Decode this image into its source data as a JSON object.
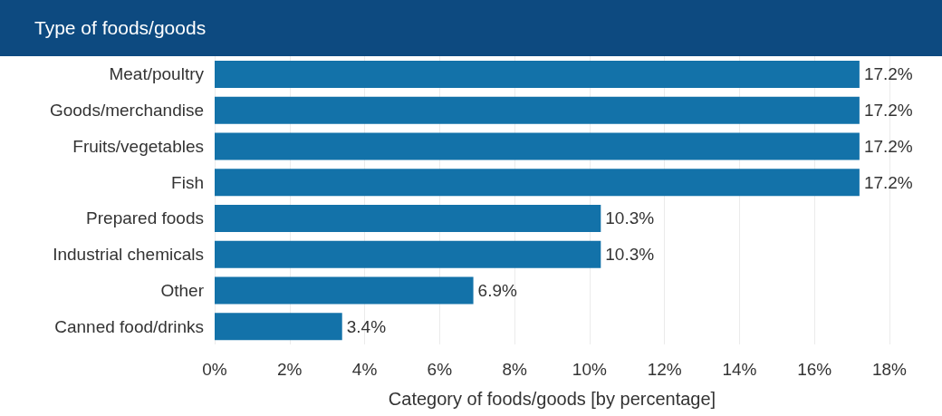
{
  "chart_data": {
    "type": "bar",
    "orientation": "horizontal",
    "title": "Type of foods/goods",
    "xlabel": "Category of foods/goods [by percentage]",
    "categories": [
      "Meat/poultry",
      "Goods/merchandise",
      "Fruits/vegetables",
      "Fish",
      "Prepared foods",
      "Industrial chemicals",
      "Other",
      "Canned food/drinks"
    ],
    "values": [
      17.2,
      17.2,
      17.2,
      17.2,
      10.3,
      10.3,
      6.9,
      3.4
    ],
    "value_labels": [
      "17.2%",
      "17.2%",
      "17.2%",
      "17.2%",
      "10.3%",
      "10.3%",
      "6.9%",
      "3.4%"
    ],
    "color": "#1372a9",
    "xlim": [
      0,
      18
    ],
    "xticks": [
      {
        "value": 0,
        "label": "0%"
      },
      {
        "value": 2,
        "label": "2%"
      },
      {
        "value": 4,
        "label": "4%"
      },
      {
        "value": 6,
        "label": "6%"
      },
      {
        "value": 8,
        "label": "8%"
      },
      {
        "value": 10,
        "label": "10%"
      },
      {
        "value": 12,
        "label": "12%"
      },
      {
        "value": 14,
        "label": "14%"
      },
      {
        "value": 16,
        "label": "16%"
      },
      {
        "value": 18,
        "label": "18%"
      }
    ],
    "grid": "x"
  }
}
